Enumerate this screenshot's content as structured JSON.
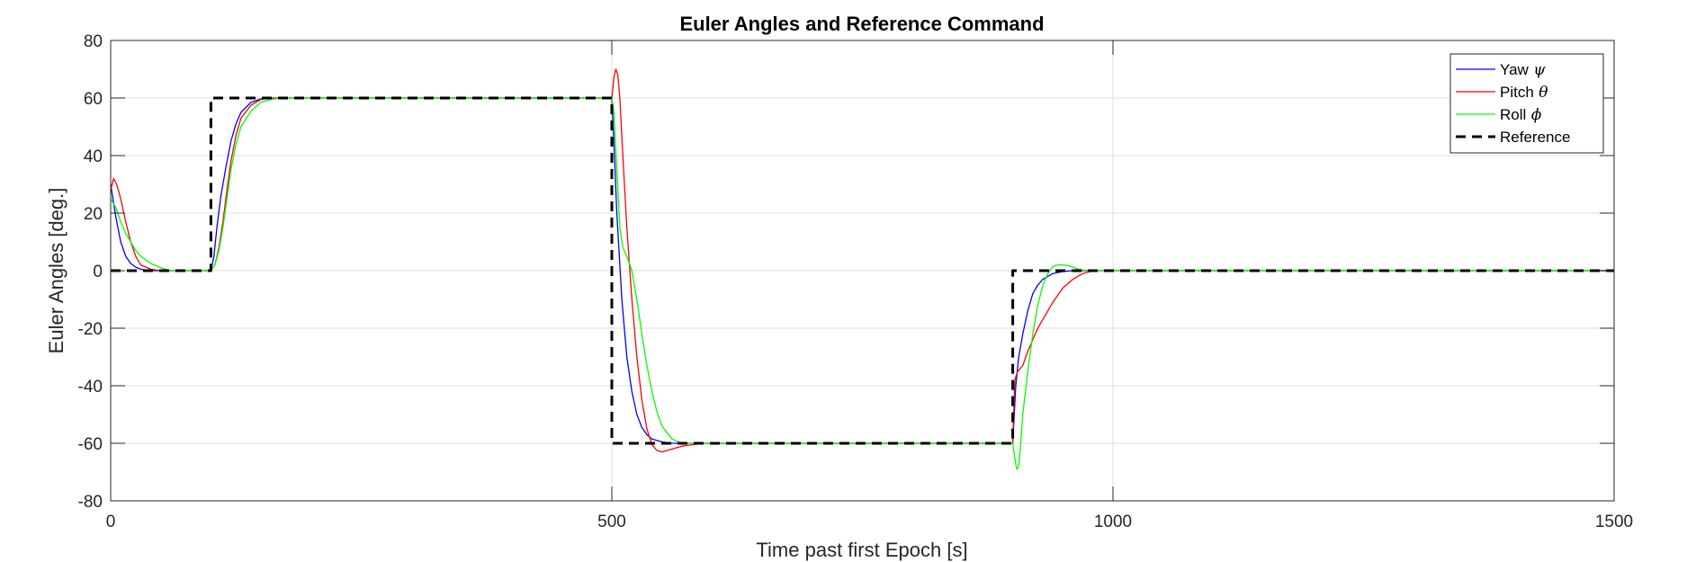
{
  "chart_data": {
    "type": "line",
    "title": "Euler Angles and Reference Command",
    "xlabel": "Time past first Epoch [s]",
    "ylabel": "Euler Angles [deg.]",
    "xlim": [
      0,
      1500
    ],
    "ylim": [
      -80,
      80
    ],
    "xticks": [
      0,
      500,
      1000,
      1500
    ],
    "yticks": [
      -80,
      -60,
      -40,
      -20,
      0,
      20,
      40,
      60,
      80
    ],
    "grid": true,
    "legend_position": "top-right",
    "series": [
      {
        "name": "Yaw",
        "symbol": "ψ",
        "color": "#0000ff",
        "dash": "solid",
        "x": [
          0,
          5,
          10,
          15,
          20,
          25,
          30,
          40,
          50,
          60,
          70,
          100,
          103,
          106,
          110,
          115,
          120,
          125,
          130,
          140,
          150,
          170,
          200,
          300,
          400,
          499,
          500,
          502,
          505,
          510,
          515,
          520,
          525,
          530,
          535,
          540,
          550,
          560,
          570,
          580,
          590,
          600,
          700,
          800,
          899,
          900,
          903,
          906,
          910,
          915,
          920,
          925,
          930,
          940,
          950,
          960,
          970,
          980,
          1000,
          1200,
          1500
        ],
        "y": [
          30,
          19,
          10,
          5,
          2.5,
          1.2,
          0.5,
          0,
          0,
          0,
          0,
          0,
          5,
          15,
          26,
          36,
          45,
          51,
          55,
          58.5,
          59.7,
          60,
          60,
          60,
          60,
          60,
          60,
          45,
          20,
          -10,
          -30,
          -42,
          -50,
          -54.5,
          -57,
          -58.5,
          -59.5,
          -60,
          -60,
          -60,
          -60,
          -60,
          -60,
          -60,
          -60,
          -60,
          -40,
          -30,
          -22,
          -14,
          -8,
          -5,
          -3,
          -1,
          -0.3,
          0,
          0,
          0,
          0,
          0,
          0
        ]
      },
      {
        "name": "Pitch",
        "symbol": "θ",
        "color": "#ff0000",
        "dash": "solid",
        "x": [
          0,
          3,
          6,
          10,
          15,
          20,
          25,
          30,
          40,
          50,
          60,
          70,
          100,
          104,
          108,
          112,
          116,
          120,
          125,
          130,
          140,
          150,
          160,
          170,
          200,
          300,
          400,
          499,
          500,
          502,
          504,
          506,
          508,
          511,
          515,
          520,
          525,
          530,
          535,
          540,
          545,
          550,
          555,
          560,
          570,
          580,
          590,
          600,
          700,
          800,
          899,
          900,
          902,
          905,
          910,
          915,
          920,
          925,
          930,
          935,
          940,
          950,
          960,
          970,
          980,
          1000,
          1200,
          1500
        ],
        "y": [
          28,
          32,
          30,
          25,
          17,
          10,
          5,
          2,
          0.5,
          0,
          0,
          0,
          0,
          2,
          8,
          17,
          28,
          38,
          47,
          53,
          57.5,
          59.5,
          60,
          60,
          60,
          60,
          60,
          60,
          60,
          67,
          70,
          68,
          60,
          40,
          15,
          -10,
          -30,
          -45,
          -55,
          -60.5,
          -62.5,
          -63,
          -62.5,
          -62,
          -61,
          -60.5,
          -60,
          -60,
          -60,
          -60,
          -60,
          -60,
          -38,
          -35,
          -33,
          -28,
          -24,
          -20,
          -17,
          -14,
          -11,
          -6,
          -3,
          -1,
          0,
          0,
          0,
          0
        ]
      },
      {
        "name": "Roll",
        "symbol": "ϕ",
        "color": "#00ff00",
        "dash": "solid",
        "x": [
          0,
          5,
          10,
          15,
          20,
          25,
          30,
          40,
          50,
          60,
          70,
          80,
          100,
          104,
          108,
          112,
          116,
          120,
          125,
          130,
          140,
          150,
          160,
          170,
          200,
          300,
          400,
          499,
          500,
          502,
          505,
          508,
          511,
          515,
          520,
          525,
          530,
          535,
          540,
          545,
          550,
          560,
          570,
          580,
          590,
          600,
          700,
          800,
          899,
          900,
          902,
          904,
          906,
          908,
          910,
          915,
          920,
          925,
          930,
          935,
          940,
          945,
          950,
          955,
          960,
          965,
          970,
          980,
          1000,
          1200,
          1500
        ],
        "y": [
          25,
          22,
          17,
          13,
          10,
          7,
          5,
          2.5,
          1,
          0,
          0,
          0,
          0,
          2,
          7,
          15,
          25,
          35,
          44,
          50,
          55.5,
          58.5,
          59.5,
          60,
          60,
          60,
          60,
          60,
          60,
          55,
          35,
          15,
          8,
          5,
          0,
          -10,
          -22,
          -33,
          -42,
          -49,
          -54,
          -58.5,
          -60,
          -60,
          -60,
          -60,
          -60,
          -60,
          -60,
          -60,
          -65,
          -69,
          -68,
          -60,
          -50,
          -35,
          -22,
          -12,
          -5,
          -1,
          1.5,
          2,
          2,
          1.8,
          1.2,
          0.6,
          0.2,
          0,
          0,
          0,
          0
        ]
      },
      {
        "name": "Reference",
        "symbol": "",
        "color": "#000000",
        "dash": "dashed",
        "x": [
          0,
          100,
          100,
          500,
          500,
          900,
          900,
          1500
        ],
        "y": [
          0,
          0,
          60,
          60,
          -60,
          -60,
          0,
          0
        ]
      }
    ]
  }
}
